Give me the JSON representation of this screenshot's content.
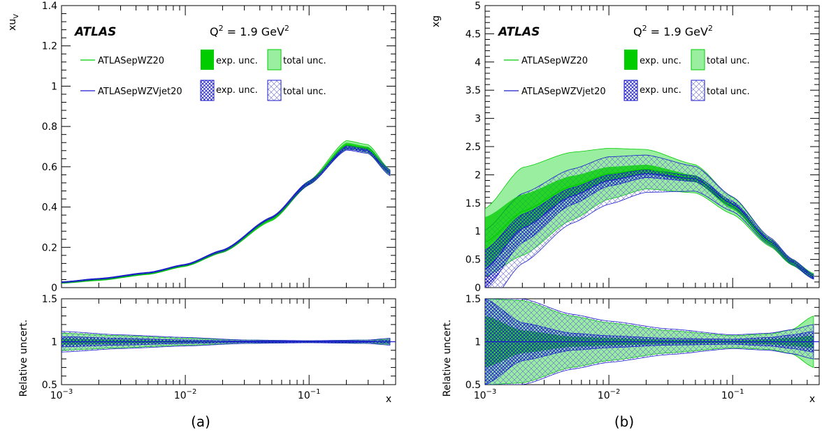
{
  "chart_data": [
    {
      "type": "line",
      "panel_label": "(a)",
      "atlas_label": "ATLAS",
      "q2_label": "Q",
      "q2_sup": "2",
      "q2_value": " = 1.9 GeV",
      "q2_unit_sup": "2",
      "ylabel_main": "xu",
      "ylabel_sub": "V",
      "ylabel_ratio": "Relative uncert.",
      "xlabel": "x",
      "xscale": "log",
      "xlim": [
        0.001,
        0.5
      ],
      "ylim": [
        0,
        1.4
      ],
      "ratio_ylim": [
        0.5,
        1.5
      ],
      "yticks": [
        "0",
        "0.2",
        "0.4",
        "0.6",
        "0.8",
        "1",
        "1.2",
        "1.4"
      ],
      "ratio_yticks": [
        "0.5",
        "1",
        "1.5"
      ],
      "xtick_base": "10",
      "xtick_exp": [
        "−3",
        "−2",
        "−1"
      ],
      "legend": {
        "series1": "ATLASepWZ20",
        "series2": "ATLASepWZVjet20",
        "exp": "exp. unc.",
        "total": "total unc."
      },
      "x": [
        0.001,
        0.002,
        0.005,
        0.01,
        0.02,
        0.05,
        0.1,
        0.2,
        0.3,
        0.45
      ],
      "series": [
        {
          "name": "ATLASepWZ20",
          "values": [
            0.025,
            0.04,
            0.07,
            0.11,
            0.18,
            0.34,
            0.52,
            0.71,
            0.69,
            0.57
          ],
          "exp_unc": [
            0.004,
            0.004,
            0.004,
            0.004,
            0.004,
            0.006,
            0.008,
            0.01,
            0.01,
            0.01
          ],
          "total_unc": [
            0.004,
            0.005,
            0.005,
            0.005,
            0.006,
            0.008,
            0.01,
            0.02,
            0.02,
            0.015
          ]
        },
        {
          "name": "ATLASepWZVjet20",
          "values": [
            0.026,
            0.042,
            0.072,
            0.112,
            0.182,
            0.345,
            0.52,
            0.695,
            0.68,
            0.57
          ],
          "exp_unc": [
            0.003,
            0.003,
            0.003,
            0.003,
            0.004,
            0.005,
            0.007,
            0.008,
            0.008,
            0.008
          ],
          "total_unc": [
            0.003,
            0.004,
            0.004,
            0.004,
            0.005,
            0.007,
            0.009,
            0.012,
            0.014,
            0.014
          ]
        }
      ],
      "ratio": {
        "x": [
          0.001,
          0.003,
          0.01,
          0.03,
          0.1,
          0.3,
          0.45
        ],
        "green_total": [
          0.1,
          0.07,
          0.04,
          0.02,
          0.01,
          0.02,
          0.03
        ],
        "blue_exp": [
          0.06,
          0.04,
          0.02,
          0.01,
          0.01,
          0.01,
          0.02
        ],
        "blue_total": [
          0.12,
          0.08,
          0.05,
          0.02,
          0.012,
          0.02,
          0.04
        ]
      }
    },
    {
      "type": "line",
      "panel_label": "(b)",
      "atlas_label": "ATLAS",
      "q2_label": "Q",
      "q2_sup": "2",
      "q2_value": " = 1.9 GeV",
      "q2_unit_sup": "2",
      "ylabel_main": "xg",
      "ylabel_ratio": "Relative uncert.",
      "xlabel": "x",
      "xscale": "log",
      "xlim": [
        0.001,
        0.5
      ],
      "ylim": [
        0,
        5
      ],
      "ratio_ylim": [
        0.5,
        1.5
      ],
      "yticks": [
        "0",
        "0.5",
        "1",
        "1.5",
        "2",
        "2.5",
        "3",
        "3.5",
        "4",
        "4.5",
        "5"
      ],
      "ratio_yticks": [
        "0.5",
        "1",
        "1.5"
      ],
      "xtick_base": "10",
      "xtick_exp": [
        "−3",
        "−2",
        "−1"
      ],
      "legend": {
        "series1": "ATLASepWZ20",
        "series2": "ATLASepWZVjet20",
        "exp": "exp. unc.",
        "total": "total unc."
      },
      "x": [
        0.001,
        0.002,
        0.005,
        0.01,
        0.02,
        0.05,
        0.1,
        0.2,
        0.3,
        0.45
      ],
      "series": [
        {
          "name": "ATLASepWZ20",
          "values": [
            0.8,
            1.35,
            1.8,
            2.02,
            2.1,
            1.93,
            1.45,
            0.8,
            0.45,
            0.2
          ],
          "exp_unc": [
            0.45,
            0.3,
            0.18,
            0.12,
            0.08,
            0.06,
            0.06,
            0.05,
            0.04,
            0.03
          ],
          "total_unc": [
            0.6,
            0.78,
            0.6,
            0.45,
            0.35,
            0.25,
            0.15,
            0.07,
            0.05,
            0.05
          ]
        },
        {
          "name": "ATLASepWZVjet20",
          "values": [
            0.32,
            1.05,
            1.62,
            1.9,
            2.02,
            1.93,
            1.48,
            0.82,
            0.46,
            0.19
          ],
          "exp_unc": [
            0.35,
            0.25,
            0.15,
            0.1,
            0.07,
            0.05,
            0.05,
            0.04,
            0.03,
            0.03
          ],
          "total_unc": [
            0.7,
            0.62,
            0.48,
            0.42,
            0.33,
            0.22,
            0.13,
            0.07,
            0.05,
            0.04
          ]
        }
      ],
      "ratio": {
        "x": [
          0.001,
          0.002,
          0.005,
          0.01,
          0.03,
          0.1,
          0.2,
          0.3,
          0.45
        ],
        "green_total": [
          0.5,
          0.48,
          0.3,
          0.22,
          0.13,
          0.07,
          0.09,
          0.14,
          0.3
        ],
        "blue_exp": [
          0.5,
          0.22,
          0.1,
          0.07,
          0.04,
          0.03,
          0.05,
          0.08,
          0.12
        ],
        "blue_total": [
          0.5,
          0.5,
          0.32,
          0.24,
          0.15,
          0.08,
          0.1,
          0.14,
          0.2
        ]
      }
    }
  ],
  "colors": {
    "green_line": "#00cc00",
    "green_exp": "#00cc00",
    "green_total": "#99eea0",
    "blue_line": "#1a1acc",
    "blue_hatch": "#1a1acc"
  }
}
